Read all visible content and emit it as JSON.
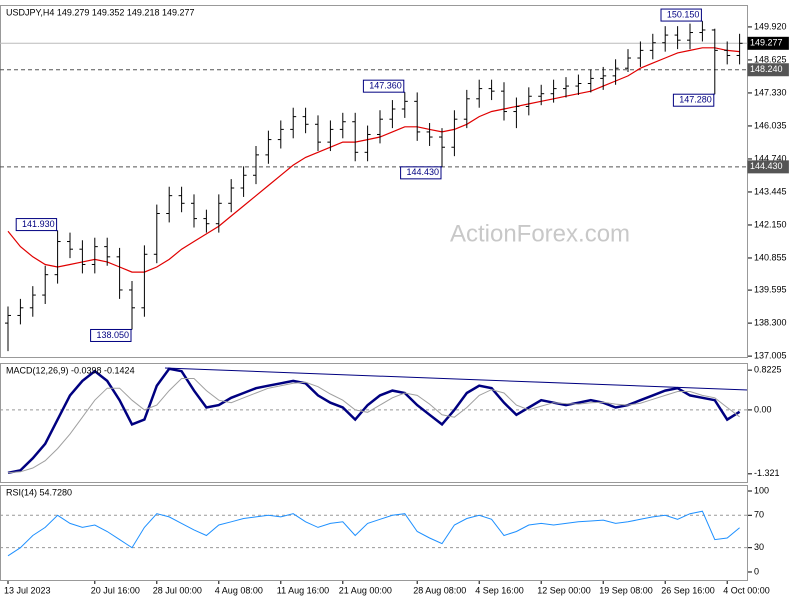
{
  "chart_data": [
    {
      "type": "ohlc",
      "title": "USDJPY,H4  149.279 149.352 149.218 149.277",
      "watermark": "ActionForex.com",
      "categories": [
        "13 Jul 2023",
        null,
        null,
        null,
        null,
        null,
        null,
        "20 Jul 16:00",
        null,
        null,
        null,
        null,
        "28 Jul 00:00",
        null,
        null,
        null,
        null,
        "4 Aug 08:00",
        null,
        null,
        null,
        null,
        "11 Aug 16:00",
        null,
        null,
        null,
        null,
        "21 Aug 00:00",
        null,
        null,
        null,
        null,
        null,
        "28 Aug 08:00",
        null,
        null,
        null,
        null,
        "4 Sep 16:00",
        null,
        null,
        null,
        null,
        "12 Sep 00:00",
        null,
        null,
        null,
        null,
        "19 Sep 08:00",
        null,
        null,
        null,
        null,
        "26 Sep 16:00",
        null,
        null,
        null,
        null,
        "4 Oct 00:00",
        null
      ],
      "open": [
        138.3,
        138.6,
        138.9,
        139.4,
        140.2,
        141.5,
        141.2,
        140.6,
        141.3,
        140.9,
        139.6,
        138.9,
        141.0,
        142.6,
        143.3,
        143.0,
        142.4,
        142.2,
        143.0,
        143.6,
        144.1,
        144.9,
        145.5,
        145.9,
        146.4,
        146.1,
        145.4,
        145.9,
        146.2,
        145.0,
        145.7,
        146.3,
        146.7,
        147.0,
        145.8,
        145.6,
        145.2,
        146.3,
        147.1,
        147.5,
        147.4,
        146.6,
        146.8,
        147.2,
        147.3,
        147.5,
        147.6,
        147.7,
        147.9,
        148.0,
        148.3,
        148.7,
        149.0,
        149.3,
        149.6,
        149.4,
        149.7,
        149.8,
        149.0,
        148.8
      ],
      "high": [
        138.95,
        139.25,
        139.75,
        140.55,
        141.93,
        141.85,
        141.55,
        141.65,
        141.65,
        141.25,
        139.95,
        141.35,
        142.95,
        143.65,
        143.65,
        143.35,
        142.75,
        143.35,
        143.95,
        144.45,
        145.25,
        145.85,
        146.25,
        146.75,
        146.75,
        146.45,
        146.25,
        146.55,
        146.55,
        146.05,
        146.65,
        147.05,
        147.36,
        147.35,
        146.15,
        145.95,
        146.65,
        147.45,
        147.85,
        147.85,
        147.75,
        147.15,
        147.55,
        147.65,
        147.85,
        147.95,
        148.05,
        148.25,
        148.35,
        148.65,
        149.05,
        149.35,
        149.65,
        149.95,
        149.95,
        150.05,
        150.15,
        149.85,
        149.35,
        149.65
      ],
      "low": [
        137.2,
        138.25,
        138.55,
        139.05,
        139.85,
        140.85,
        140.25,
        140.25,
        140.55,
        139.25,
        138.05,
        138.55,
        140.65,
        142.25,
        142.65,
        142.05,
        141.85,
        141.85,
        142.65,
        143.25,
        143.75,
        144.55,
        145.15,
        145.55,
        145.75,
        145.05,
        145.05,
        145.55,
        144.65,
        144.65,
        145.35,
        145.95,
        146.35,
        145.45,
        145.25,
        144.43,
        144.85,
        145.95,
        146.75,
        147.05,
        146.25,
        145.95,
        146.45,
        146.85,
        146.95,
        147.15,
        147.25,
        147.35,
        147.45,
        147.65,
        148.15,
        148.35,
        148.65,
        148.95,
        149.05,
        149.05,
        149.35,
        147.28,
        148.45,
        148.45
      ],
      "close": [
        138.6,
        138.9,
        139.4,
        140.2,
        141.5,
        141.2,
        140.6,
        141.3,
        140.9,
        139.6,
        138.9,
        141.0,
        142.6,
        143.3,
        143.0,
        142.4,
        142.2,
        143.0,
        143.6,
        144.1,
        144.9,
        145.5,
        145.9,
        146.4,
        146.1,
        145.4,
        145.9,
        146.2,
        145.0,
        145.7,
        146.3,
        146.7,
        147.0,
        145.8,
        145.6,
        145.2,
        146.3,
        147.1,
        147.5,
        147.4,
        146.6,
        146.8,
        147.2,
        147.3,
        147.5,
        147.6,
        147.7,
        147.9,
        148.0,
        148.3,
        148.7,
        149.0,
        149.3,
        149.6,
        149.4,
        149.7,
        149.8,
        149.0,
        148.8,
        149.277
      ],
      "bar_color": "#000000",
      "ma_values": [
        141.9,
        141.3,
        140.9,
        140.6,
        140.5,
        140.6,
        140.7,
        140.8,
        140.7,
        140.5,
        140.3,
        140.3,
        140.5,
        140.8,
        141.2,
        141.5,
        141.8,
        142.1,
        142.5,
        142.9,
        143.3,
        143.7,
        144.1,
        144.5,
        144.8,
        145.0,
        145.2,
        145.4,
        145.4,
        145.5,
        145.6,
        145.8,
        146.0,
        146.0,
        145.9,
        145.8,
        145.9,
        146.1,
        146.4,
        146.6,
        146.7,
        146.8,
        146.9,
        147.0,
        147.1,
        147.2,
        147.3,
        147.4,
        147.6,
        147.8,
        148.0,
        148.3,
        148.5,
        148.7,
        148.9,
        149.0,
        149.1,
        149.1,
        149.0,
        148.95
      ],
      "ma_color": "#e00000",
      "ylim": [
        136.97,
        150.78
      ],
      "yticks": [
        {
          "value": 149.92,
          "label": "149.920"
        },
        148.625,
        {
          "value": 147.33,
          "label": "147.330"
        },
        146.035,
        {
          "value": 144.74,
          "label": "144.740"
        },
        143.445,
        {
          "value": 142.15,
          "label": "142.150"
        },
        140.855,
        139.595,
        {
          "value": 138.3,
          "label": "138.300"
        },
        137.005
      ],
      "last": {
        "value": 149.277,
        "label": "149.277"
      },
      "levels": [
        {
          "value": 148.24,
          "label": "148.240"
        },
        {
          "value": 144.43,
          "label": "144.430"
        }
      ],
      "annotations": [
        {
          "value": 150.15,
          "label": "150.150"
        },
        {
          "value": 147.36,
          "label": "147.360"
        },
        {
          "value": 144.43,
          "label": "144.430"
        },
        {
          "value": 141.93,
          "label": "141.930"
        },
        {
          "value": 138.05,
          "label": "138.050"
        },
        {
          "value": 147.28,
          "label": "147.280"
        }
      ]
    },
    {
      "type": "macd",
      "title": "MACD(12,26,9) -0.0398 -0.1424",
      "series": [
        {
          "color": "#000080",
          "values": [
            -1.3,
            -1.25,
            -1.0,
            -0.7,
            -0.2,
            0.3,
            0.6,
            0.8,
            0.6,
            0.2,
            -0.3,
            -0.2,
            0.5,
            0.85,
            0.8,
            0.4,
            0.05,
            0.1,
            0.25,
            0.35,
            0.45,
            0.5,
            0.55,
            0.6,
            0.55,
            0.3,
            0.15,
            0.05,
            -0.2,
            0.1,
            0.3,
            0.4,
            0.35,
            0.1,
            -0.1,
            -0.3,
            0.0,
            0.35,
            0.5,
            0.45,
            0.15,
            -0.1,
            0.05,
            0.2,
            0.15,
            0.1,
            0.15,
            0.2,
            0.15,
            0.05,
            0.1,
            0.2,
            0.3,
            0.4,
            0.45,
            0.3,
            0.25,
            0.2,
            -0.2,
            -0.0398
          ]
        },
        {
          "color": "#a0a0a0",
          "values": [
            -1.3,
            -1.28,
            -1.2,
            -1.05,
            -0.8,
            -0.5,
            -0.15,
            0.2,
            0.45,
            0.45,
            0.2,
            0.0,
            0.1,
            0.4,
            0.65,
            0.65,
            0.4,
            0.2,
            0.15,
            0.25,
            0.35,
            0.45,
            0.5,
            0.55,
            0.57,
            0.48,
            0.33,
            0.2,
            0.0,
            -0.05,
            0.1,
            0.25,
            0.35,
            0.3,
            0.12,
            -0.1,
            -0.15,
            0.05,
            0.3,
            0.42,
            0.35,
            0.1,
            0.0,
            0.08,
            0.15,
            0.13,
            0.12,
            0.15,
            0.16,
            0.12,
            0.1,
            0.14,
            0.22,
            0.3,
            0.38,
            0.38,
            0.3,
            0.25,
            0.05,
            -0.1424
          ]
        }
      ],
      "ylim": [
        -1.49,
        0.97
      ],
      "yticks": [
        0.8225,
        {
          "value": 0,
          "label": "0.00"
        },
        -1.321
      ],
      "levels": [
        0
      ]
    },
    {
      "type": "line",
      "title": "RSI(14) 54.7280",
      "series": [
        {
          "color": "#1e90ff",
          "values": [
            20,
            30,
            45,
            55,
            70,
            60,
            55,
            58,
            50,
            40,
            30,
            55,
            72,
            68,
            60,
            52,
            45,
            58,
            62,
            66,
            68,
            70,
            68,
            72,
            62,
            55,
            60,
            62,
            45,
            60,
            65,
            70,
            72,
            50,
            42,
            35,
            58,
            66,
            70,
            65,
            45,
            50,
            58,
            60,
            58,
            60,
            62,
            63,
            64,
            60,
            62,
            65,
            68,
            70,
            65,
            72,
            75,
            40,
            42,
            54.728
          ]
        }
      ],
      "ylim": [
        -9.9,
        107.4
      ],
      "yticks": [
        100,
        70,
        30,
        0
      ],
      "levels": [
        70,
        30
      ]
    }
  ]
}
